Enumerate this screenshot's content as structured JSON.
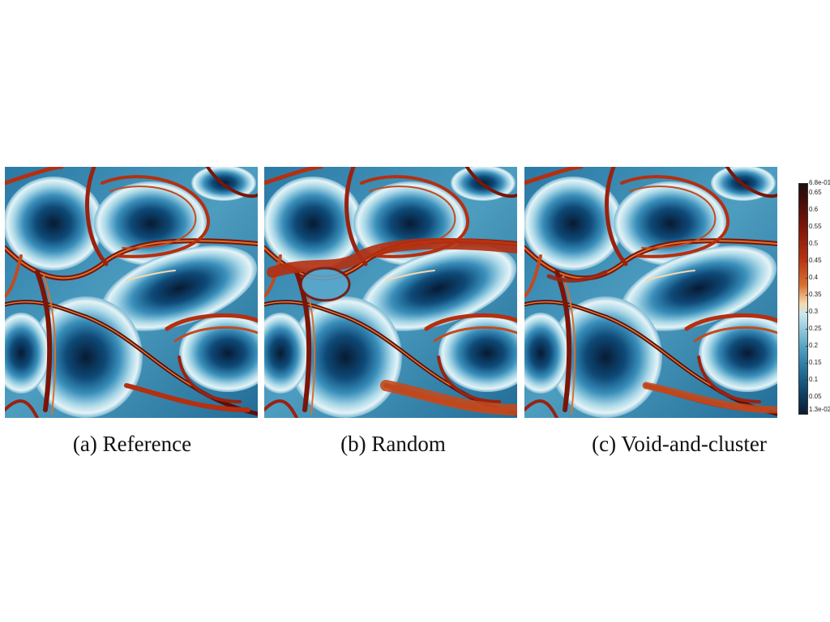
{
  "captions": {
    "a": "(a) Reference",
    "b": "(b) Random",
    "c": "(c) Void-and-cluster"
  },
  "colorbar": {
    "max": "6.8e-01",
    "min": "1.3e-02",
    "ticks": [
      "0.65",
      "0.6",
      "0.55",
      "0.5",
      "0.45",
      "0.4",
      "0.35",
      "0.3",
      "0.25",
      "0.2",
      "0.15",
      "0.1",
      "0.05"
    ],
    "colors": [
      "#0a1a33",
      "#236d97",
      "#8cc5db",
      "#f5d8b0",
      "#b52f10",
      "#3d0b09"
    ]
  }
}
